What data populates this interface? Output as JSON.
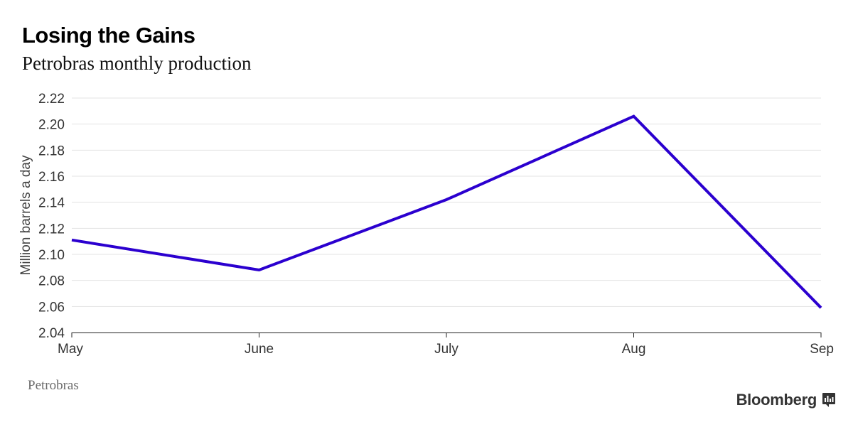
{
  "header": {
    "title": "Losing the Gains",
    "subtitle": "Petrobras monthly production"
  },
  "footer": {
    "source": "Petrobras",
    "brand": "Bloomberg"
  },
  "chart_data": {
    "type": "line",
    "title": "Losing the Gains",
    "subtitle": "Petrobras monthly production",
    "xlabel": "",
    "ylabel": "Million barrels a day",
    "categories": [
      "May",
      "June",
      "July",
      "Aug",
      "Sep"
    ],
    "series": [
      {
        "values": [
          2.111,
          2.088,
          2.142,
          2.206,
          2.059
        ],
        "color": "#2b00cf"
      }
    ],
    "ylim": [
      2.04,
      2.22
    ],
    "yticks": [
      "2.04",
      "2.06",
      "2.08",
      "2.10",
      "2.12",
      "2.14",
      "2.16",
      "2.18",
      "2.20",
      "2.22"
    ],
    "grid": true,
    "legend": "none"
  }
}
